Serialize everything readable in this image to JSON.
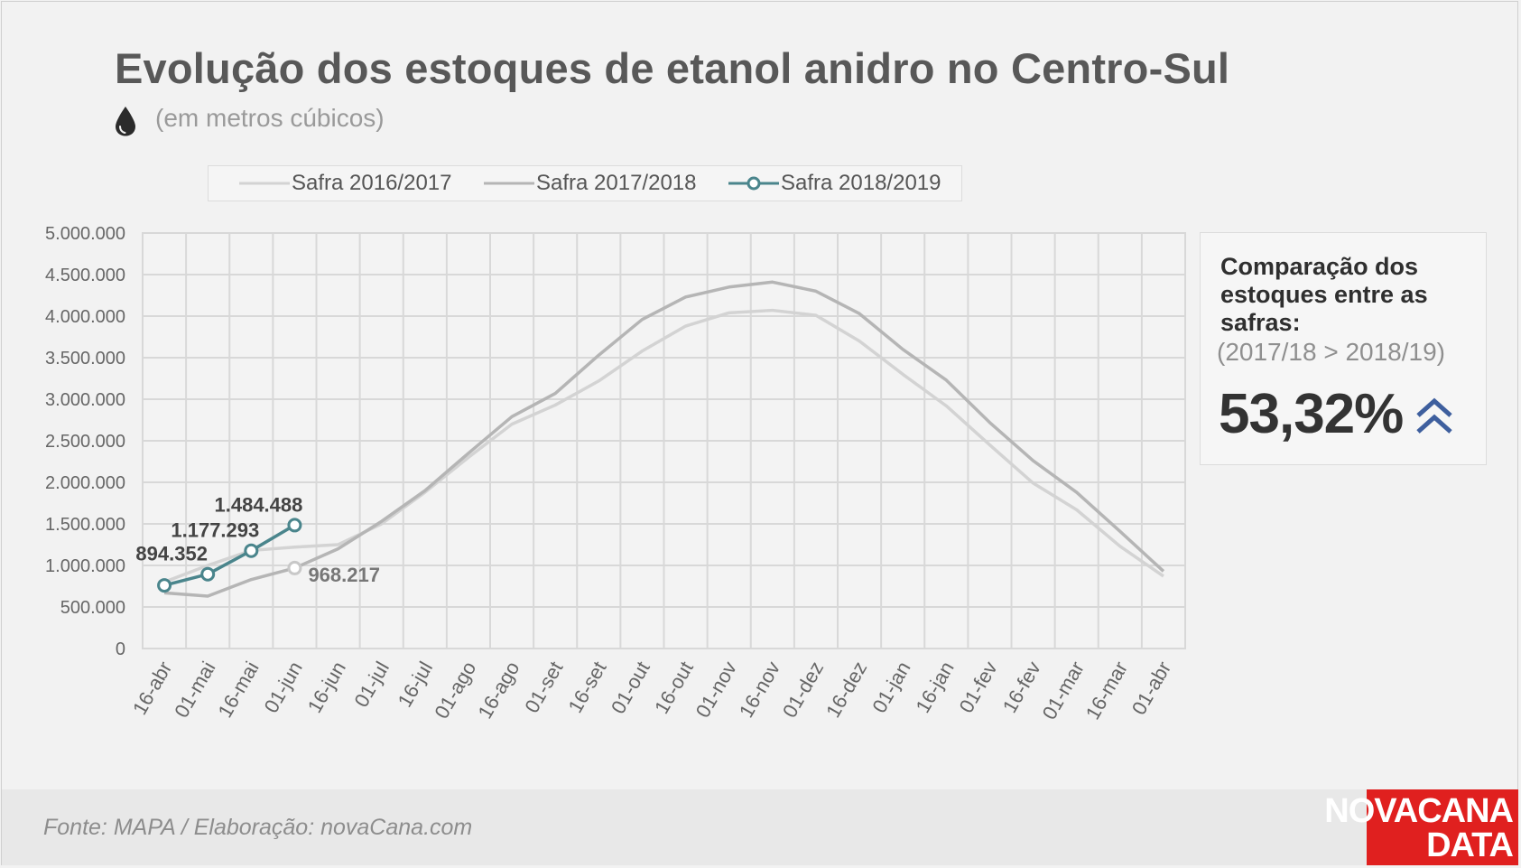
{
  "header": {
    "title": "Evolução dos estoques de etanol anidro no Centro-Sul",
    "subtitle": "(em metros cúbicos)",
    "icon": "drop-icon"
  },
  "comparison": {
    "title": "Comparação dos estoques entre as safras:",
    "subtitle": "(2017/18 > 2018/19)",
    "value": "53,32%",
    "icon": "double-chevron-up-icon",
    "icon_color": "#3e5f9e"
  },
  "footer": {
    "source": "Fonte: MAPA  / Elaboração: novaCana.com"
  },
  "brand": {
    "line1": "NOVACANA",
    "line2": "DATA",
    "color": "#e0201f"
  },
  "chart_data": {
    "type": "line",
    "categories": [
      "16-abr",
      "01-mai",
      "16-mai",
      "01-jun",
      "16-jun",
      "01-jul",
      "16-jul",
      "01-ago",
      "16-ago",
      "01-set",
      "16-set",
      "01-out",
      "16-out",
      "01-nov",
      "16-nov",
      "01-dez",
      "16-dez",
      "01-jan",
      "16-jan",
      "01-fev",
      "16-fev",
      "01-mar",
      "16-mar",
      "01-abr"
    ],
    "ylim": [
      0,
      5000000
    ],
    "yticks": [
      0,
      500000,
      1000000,
      1500000,
      2000000,
      2500000,
      3000000,
      3500000,
      4000000,
      4500000,
      5000000
    ],
    "ytick_labels": [
      "0",
      "500.000",
      "1.000.000",
      "1.500.000",
      "2.000.000",
      "2.500.000",
      "3.000.000",
      "3.500.000",
      "4.000.000",
      "4.500.000",
      "5.000.000"
    ],
    "grid": true,
    "legend_position": "top",
    "series": [
      {
        "name": "Safra 2016/2017",
        "color": "#d3d3d3",
        "markers": false,
        "values": [
          800000,
          1000000,
          1180000,
          1220000,
          1250000,
          1500000,
          1880000,
          2300000,
          2700000,
          2930000,
          3220000,
          3580000,
          3880000,
          4040000,
          4070000,
          4010000,
          3700000,
          3300000,
          2920000,
          2450000,
          1990000,
          1670000,
          1230000,
          870000
        ]
      },
      {
        "name": "Safra 2017/2018",
        "color": "#b5b5b5",
        "markers": false,
        "values": [
          670000,
          630000,
          830000,
          968217,
          1200000,
          1530000,
          1900000,
          2350000,
          2790000,
          3070000,
          3530000,
          3960000,
          4230000,
          4350000,
          4410000,
          4300000,
          4030000,
          3600000,
          3230000,
          2720000,
          2260000,
          1880000,
          1410000,
          930000
        ]
      },
      {
        "name": "Safra 2018/2019",
        "color": "#4a858c",
        "markers": true,
        "values": [
          760000,
          894352,
          1177293,
          1484488,
          null,
          null,
          null,
          null,
          null,
          null,
          null,
          null,
          null,
          null,
          null,
          null,
          null,
          null,
          null,
          null,
          null,
          null,
          null,
          null
        ]
      }
    ],
    "data_labels": [
      {
        "series": 2,
        "index": 1,
        "text": "894.352"
      },
      {
        "series": 2,
        "index": 2,
        "text": "1.177.293"
      },
      {
        "series": 2,
        "index": 3,
        "text": "1.484.488"
      },
      {
        "series": 1,
        "index": 3,
        "text": "968.217"
      }
    ]
  }
}
